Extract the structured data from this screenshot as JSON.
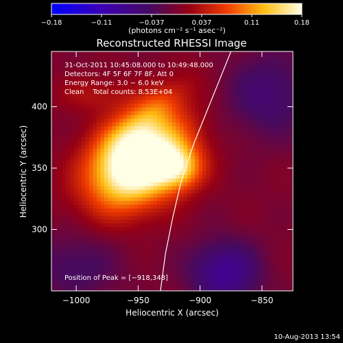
{
  "chart_data": {
    "type": "heatmap",
    "title": "Reconstructed RHESSI Image",
    "colorbar": {
      "ticks": [
        "−0.18",
        "−0.11",
        "−0.037",
        "0.037",
        "0.11",
        "0.18"
      ],
      "range": [
        -0.18,
        0.18
      ],
      "unit_label": "(photons cm⁻² s⁻¹ asec⁻²)"
    },
    "xlabel": "Heliocentric X (arcsec)",
    "ylabel": "Heliocentric Y (arcsec)",
    "xlim": [
      -1020,
      -825
    ],
    "ylim": [
      250,
      445
    ],
    "x_ticks": [
      {
        "value": -1000,
        "label": "−1000"
      },
      {
        "value": -950,
        "label": "−950"
      },
      {
        "value": -900,
        "label": "−900"
      },
      {
        "value": -850,
        "label": "−850"
      }
    ],
    "y_ticks": [
      {
        "value": 300,
        "label": "300"
      },
      {
        "value": 350,
        "label": "350"
      },
      {
        "value": 400,
        "label": "400"
      }
    ],
    "annotations": [
      "31-Oct-2011 10:45:08.000 to 10:49:48.000",
      "Detectors: 4F 5F 6F 7F 8F, Att 0",
      "Energy Range: 3.0 − 6.0 keV",
      "Clean    Total counts: 8.53E+04"
    ],
    "peak_text": "Position of Peak = [−918,348]",
    "peak": {
      "x": -918,
      "y": 348
    },
    "limb": [
      {
        "x": -875,
        "y": 445
      },
      {
        "x": -885,
        "y": 420
      },
      {
        "x": -895,
        "y": 395
      },
      {
        "x": -905,
        "y": 370
      },
      {
        "x": -915,
        "y": 340
      },
      {
        "x": -922,
        "y": 310
      },
      {
        "x": -928,
        "y": 280
      },
      {
        "x": -932,
        "y": 250
      }
    ],
    "sources": [
      {
        "x": -950,
        "y": 355,
        "sx": 30,
        "sy": 22,
        "rot": 40,
        "amp": 0.24
      },
      {
        "x": -918,
        "y": 350,
        "sx": 14,
        "sy": 12,
        "rot": 0,
        "amp": 0.1
      },
      {
        "x": -940,
        "y": 395,
        "sx": 30,
        "sy": 10,
        "rot": 40,
        "amp": 0.05
      },
      {
        "x": -985,
        "y": 410,
        "sx": 22,
        "sy": 10,
        "rot": 0,
        "amp": 0.03
      },
      {
        "x": -880,
        "y": 265,
        "sx": 20,
        "sy": 18,
        "rot": 0,
        "amp": -0.08
      },
      {
        "x": -1000,
        "y": 270,
        "sx": 25,
        "sy": 20,
        "rot": 0,
        "amp": -0.04
      },
      {
        "x": -845,
        "y": 410,
        "sx": 25,
        "sy": 25,
        "rot": 0,
        "amp": -0.05
      }
    ],
    "grid": false
  },
  "footer": {
    "date": "10-Aug-2013 13:54"
  },
  "colors": {
    "background": "#000000",
    "foreground": "#ffffff",
    "limb_line": "#ffffff"
  }
}
